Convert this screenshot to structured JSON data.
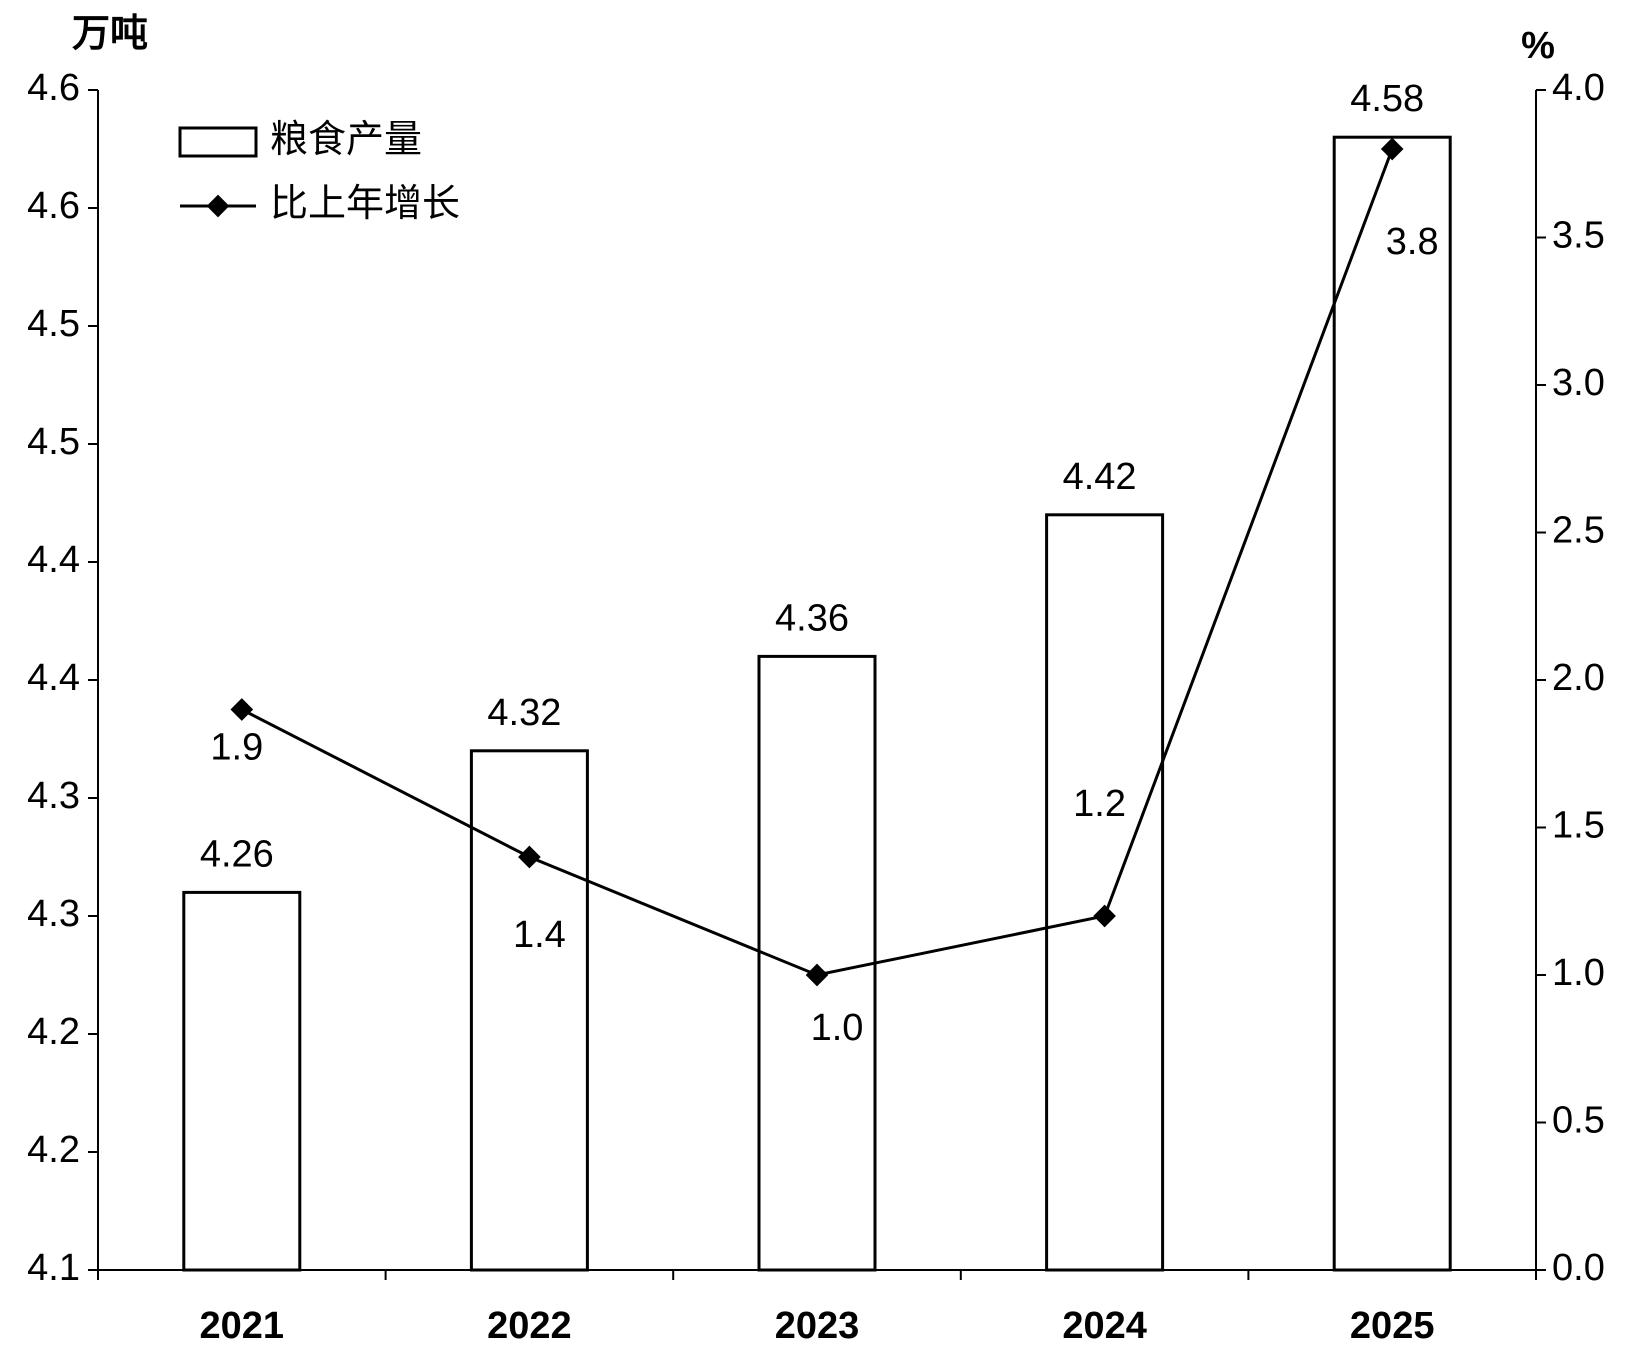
{
  "chart_data": {
    "type": "bar_line",
    "y_label": "万吨",
    "y2_label": "%",
    "categories": [
      "2021",
      "2022",
      "2023",
      "2024",
      "2025"
    ],
    "series": [
      {
        "name": "粮食产量",
        "type": "bar",
        "color": "#000000",
        "values": [
          4.26,
          4.32,
          4.36,
          4.42,
          4.58
        ]
      },
      {
        "name": "比上年增长",
        "type": "line",
        "axis": "y2",
        "color": "#000000",
        "values": [
          1.9,
          1.4,
          1.0,
          1.2,
          3.8
        ],
        "value_labels": [
          "1.9",
          "1.4",
          "1.0",
          "1.2",
          "3.8"
        ]
      }
    ],
    "ylim": [
      4.1,
      4.6
    ],
    "yticks": [
      {
        "value": 4.1,
        "label": "4.1"
      },
      {
        "value": 4.15,
        "label": "4.2"
      },
      {
        "value": 4.2,
        "label": "4.2"
      },
      {
        "value": 4.25,
        "label": "4.3"
      },
      {
        "value": 4.3,
        "label": "4.3"
      },
      {
        "value": 4.35,
        "label": "4.4"
      },
      {
        "value": 4.4,
        "label": "4.4"
      },
      {
        "value": 4.45,
        "label": "4.5"
      },
      {
        "value": 4.5,
        "label": "4.5"
      },
      {
        "value": 4.55,
        "label": "4.6"
      },
      {
        "value": 4.6,
        "label": "4.6"
      }
    ],
    "y2lim": [
      0,
      4
    ],
    "y2ticks": [
      {
        "value": 0,
        "label": "0.0"
      },
      0.5,
      {
        "value": 1,
        "label": "1.0"
      },
      1.5,
      {
        "value": 2,
        "label": "2.0"
      },
      2.5,
      {
        "value": 3,
        "label": "3.0"
      },
      3.5,
      {
        "value": 4,
        "label": "4.0"
      }
    ],
    "legend": "top-left"
  }
}
